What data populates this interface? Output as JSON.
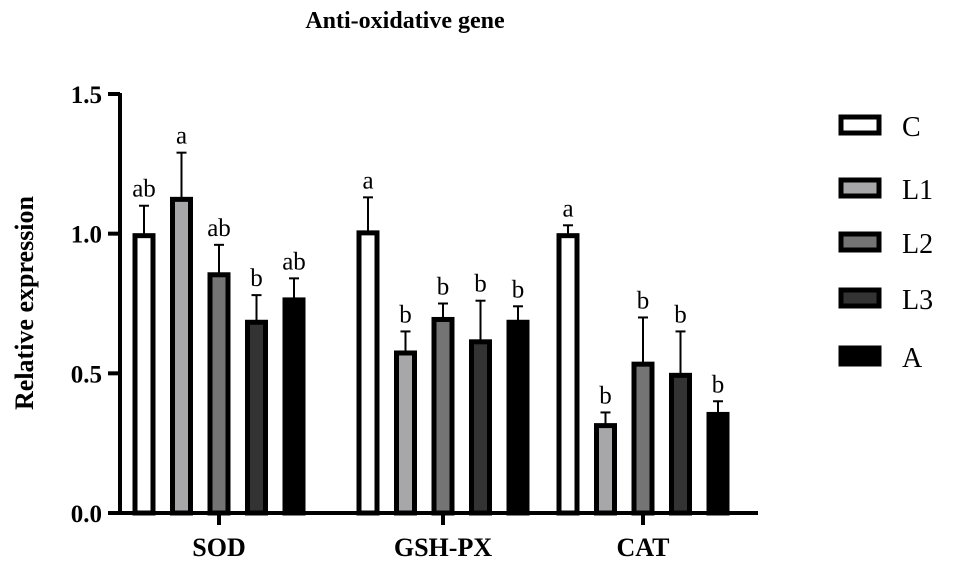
{
  "chart_data": {
    "type": "bar",
    "title": "Anti-oxidative gene",
    "xlabel": "",
    "ylabel": "Relative expression",
    "ylim": [
      0,
      1.5
    ],
    "yticks": [
      "0.0",
      "0.5",
      "1.0",
      "1.5"
    ],
    "grid": false,
    "legend_position": "right",
    "categories": [
      "SOD",
      "GSH-PX",
      "CAT"
    ],
    "series": [
      {
        "name": "C",
        "fill": "#ffffff",
        "values": [
          1.0,
          1.01,
          1.0
        ],
        "errors": [
          0.1,
          0.12,
          0.03
        ],
        "labels": [
          "ab",
          "a",
          "a"
        ]
      },
      {
        "name": "L1",
        "fill": "#a7a7a9",
        "values": [
          1.13,
          0.58,
          0.32
        ],
        "errors": [
          0.16,
          0.07,
          0.04
        ],
        "labels": [
          "a",
          "b",
          "b"
        ]
      },
      {
        "name": "L2",
        "fill": "#747474",
        "values": [
          0.86,
          0.7,
          0.54
        ],
        "errors": [
          0.1,
          0.05,
          0.16
        ],
        "labels": [
          "ab",
          "b",
          "b"
        ]
      },
      {
        "name": "L3",
        "fill": "#333333",
        "values": [
          0.69,
          0.62,
          0.5
        ],
        "errors": [
          0.09,
          0.14,
          0.15
        ],
        "labels": [
          "b",
          "b",
          "b"
        ]
      },
      {
        "name": "A",
        "fill": "#000000",
        "values": [
          0.77,
          0.69,
          0.36
        ],
        "errors": [
          0.07,
          0.05,
          0.04
        ],
        "labels": [
          "ab",
          "b",
          "b"
        ]
      }
    ]
  }
}
